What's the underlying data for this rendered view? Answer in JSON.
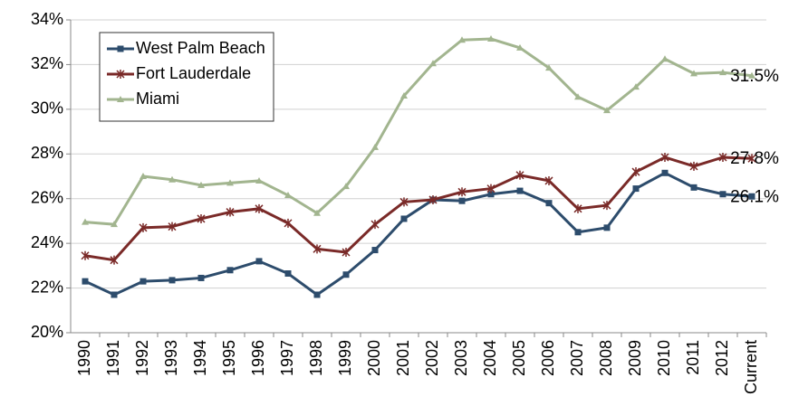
{
  "chart_data": {
    "type": "line",
    "categories": [
      "1990",
      "1991",
      "1992",
      "1993",
      "1994",
      "1995",
      "1996",
      "1997",
      "1998",
      "1999",
      "2000",
      "2001",
      "2002",
      "2003",
      "2004",
      "2005",
      "2006",
      "2007",
      "2008",
      "2009",
      "2010",
      "2011",
      "2012",
      "Current"
    ],
    "series": [
      {
        "name": "West Palm Beach",
        "color": "#2d4c6c",
        "marker": "square",
        "values": [
          22.3,
          21.7,
          22.3,
          22.35,
          22.45,
          22.8,
          23.2,
          22.65,
          21.7,
          22.6,
          23.7,
          25.1,
          25.95,
          25.9,
          26.2,
          26.35,
          25.8,
          24.5,
          24.7,
          26.45,
          27.15,
          26.5,
          26.2,
          26.1
        ],
        "value_labels": [
          null,
          null,
          null,
          null,
          null,
          null,
          null,
          null,
          null,
          null,
          null,
          null,
          null,
          null,
          null,
          null,
          null,
          null,
          null,
          null,
          null,
          null,
          null,
          "26.1%"
        ]
      },
      {
        "name": "Fort Lauderdale",
        "color": "#7a2a28",
        "marker": "star",
        "values": [
          23.45,
          23.25,
          24.7,
          24.75,
          25.1,
          25.4,
          25.55,
          24.9,
          23.75,
          23.6,
          24.85,
          25.85,
          25.95,
          26.3,
          26.45,
          27.05,
          26.8,
          25.55,
          25.7,
          27.2,
          27.85,
          27.45,
          27.85,
          27.8
        ],
        "value_labels": [
          null,
          null,
          null,
          null,
          null,
          null,
          null,
          null,
          null,
          null,
          null,
          null,
          null,
          null,
          null,
          null,
          null,
          null,
          null,
          null,
          null,
          null,
          null,
          "27.8%"
        ]
      },
      {
        "name": "Miami",
        "color": "#a2b58f",
        "marker": "triangle",
        "values": [
          24.95,
          24.85,
          27.0,
          26.85,
          26.6,
          26.7,
          26.8,
          26.15,
          25.35,
          26.55,
          28.3,
          30.6,
          32.05,
          33.1,
          33.15,
          32.75,
          31.85,
          30.55,
          29.95,
          31.0,
          32.25,
          31.6,
          31.65,
          31.5
        ],
        "value_labels": [
          null,
          null,
          null,
          null,
          null,
          null,
          null,
          null,
          null,
          null,
          null,
          null,
          null,
          null,
          null,
          null,
          null,
          null,
          null,
          null,
          null,
          null,
          null,
          "31.5%"
        ]
      }
    ],
    "ylim": [
      20,
      34
    ],
    "yticks": [
      {
        "value": 20,
        "label": "20%"
      },
      {
        "value": 22,
        "label": "22%"
      },
      {
        "value": 24,
        "label": "24%"
      },
      {
        "value": 26,
        "label": "26%"
      },
      {
        "value": 28,
        "label": "28%"
      },
      {
        "value": 30,
        "label": "30%"
      },
      {
        "value": 32,
        "label": "32%"
      },
      {
        "value": 34,
        "label": "34%"
      }
    ],
    "grid": true,
    "legend": "upper left"
  }
}
